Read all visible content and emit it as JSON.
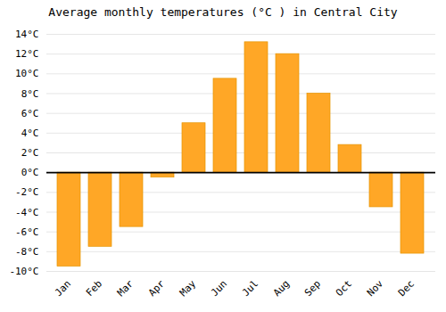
{
  "chart_data": {
    "type": "bar",
    "title": "Average monthly temperatures (°C ) in Central City",
    "categories": [
      "Jan",
      "Feb",
      "Mar",
      "Apr",
      "May",
      "Jun",
      "Jul",
      "Aug",
      "Sep",
      "Oct",
      "Nov",
      "Dec"
    ],
    "values": [
      -9.5,
      -7.5,
      -5.5,
      -0.5,
      5.0,
      9.5,
      13.2,
      12.0,
      8.0,
      2.8,
      -3.5,
      -8.2
    ],
    "color": "#FFA726",
    "ylim": [
      -10,
      14
    ],
    "yticks": [
      {
        "value": -10,
        "label": "-10°C"
      },
      {
        "value": -8,
        "label": "-8°C"
      },
      {
        "value": -6,
        "label": "-6°C"
      },
      {
        "value": -4,
        "label": "-4°C"
      },
      {
        "value": -2,
        "label": "-2°C"
      },
      {
        "value": 0,
        "label": "0°C"
      },
      {
        "value": 2,
        "label": "2°C"
      },
      {
        "value": 4,
        "label": "4°C"
      },
      {
        "value": 6,
        "label": "6°C"
      },
      {
        "value": 8,
        "label": "8°C"
      },
      {
        "value": 10,
        "label": "10°C"
      },
      {
        "value": 12,
        "label": "12°C"
      },
      {
        "value": 14,
        "label": "14°C"
      }
    ],
    "grid": true
  }
}
